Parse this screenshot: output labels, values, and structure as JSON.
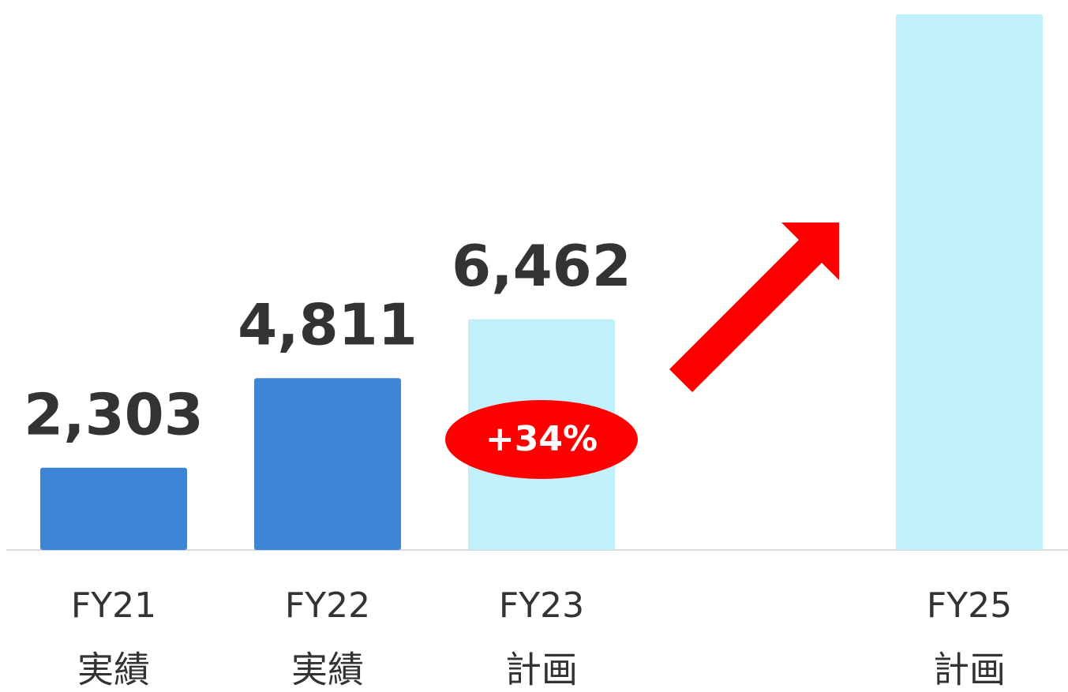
{
  "chart_data": {
    "type": "bar",
    "categories": [
      "FY21",
      "FY22",
      "FY23",
      null,
      "FY25"
    ],
    "category_notes": [
      "実績",
      "実績",
      "計画",
      null,
      "計画"
    ],
    "values": [
      2303,
      4811,
      6462,
      null,
      15000
    ],
    "value_labels": [
      "2,303",
      "4,811",
      "6,462",
      null,
      null
    ],
    "colors": [
      "#3d85d6",
      "#3d85d6",
      "#c2f0fa",
      null,
      "#c2f0fa"
    ],
    "ylim": [
      0,
      15000
    ],
    "annotation": "+34%"
  }
}
